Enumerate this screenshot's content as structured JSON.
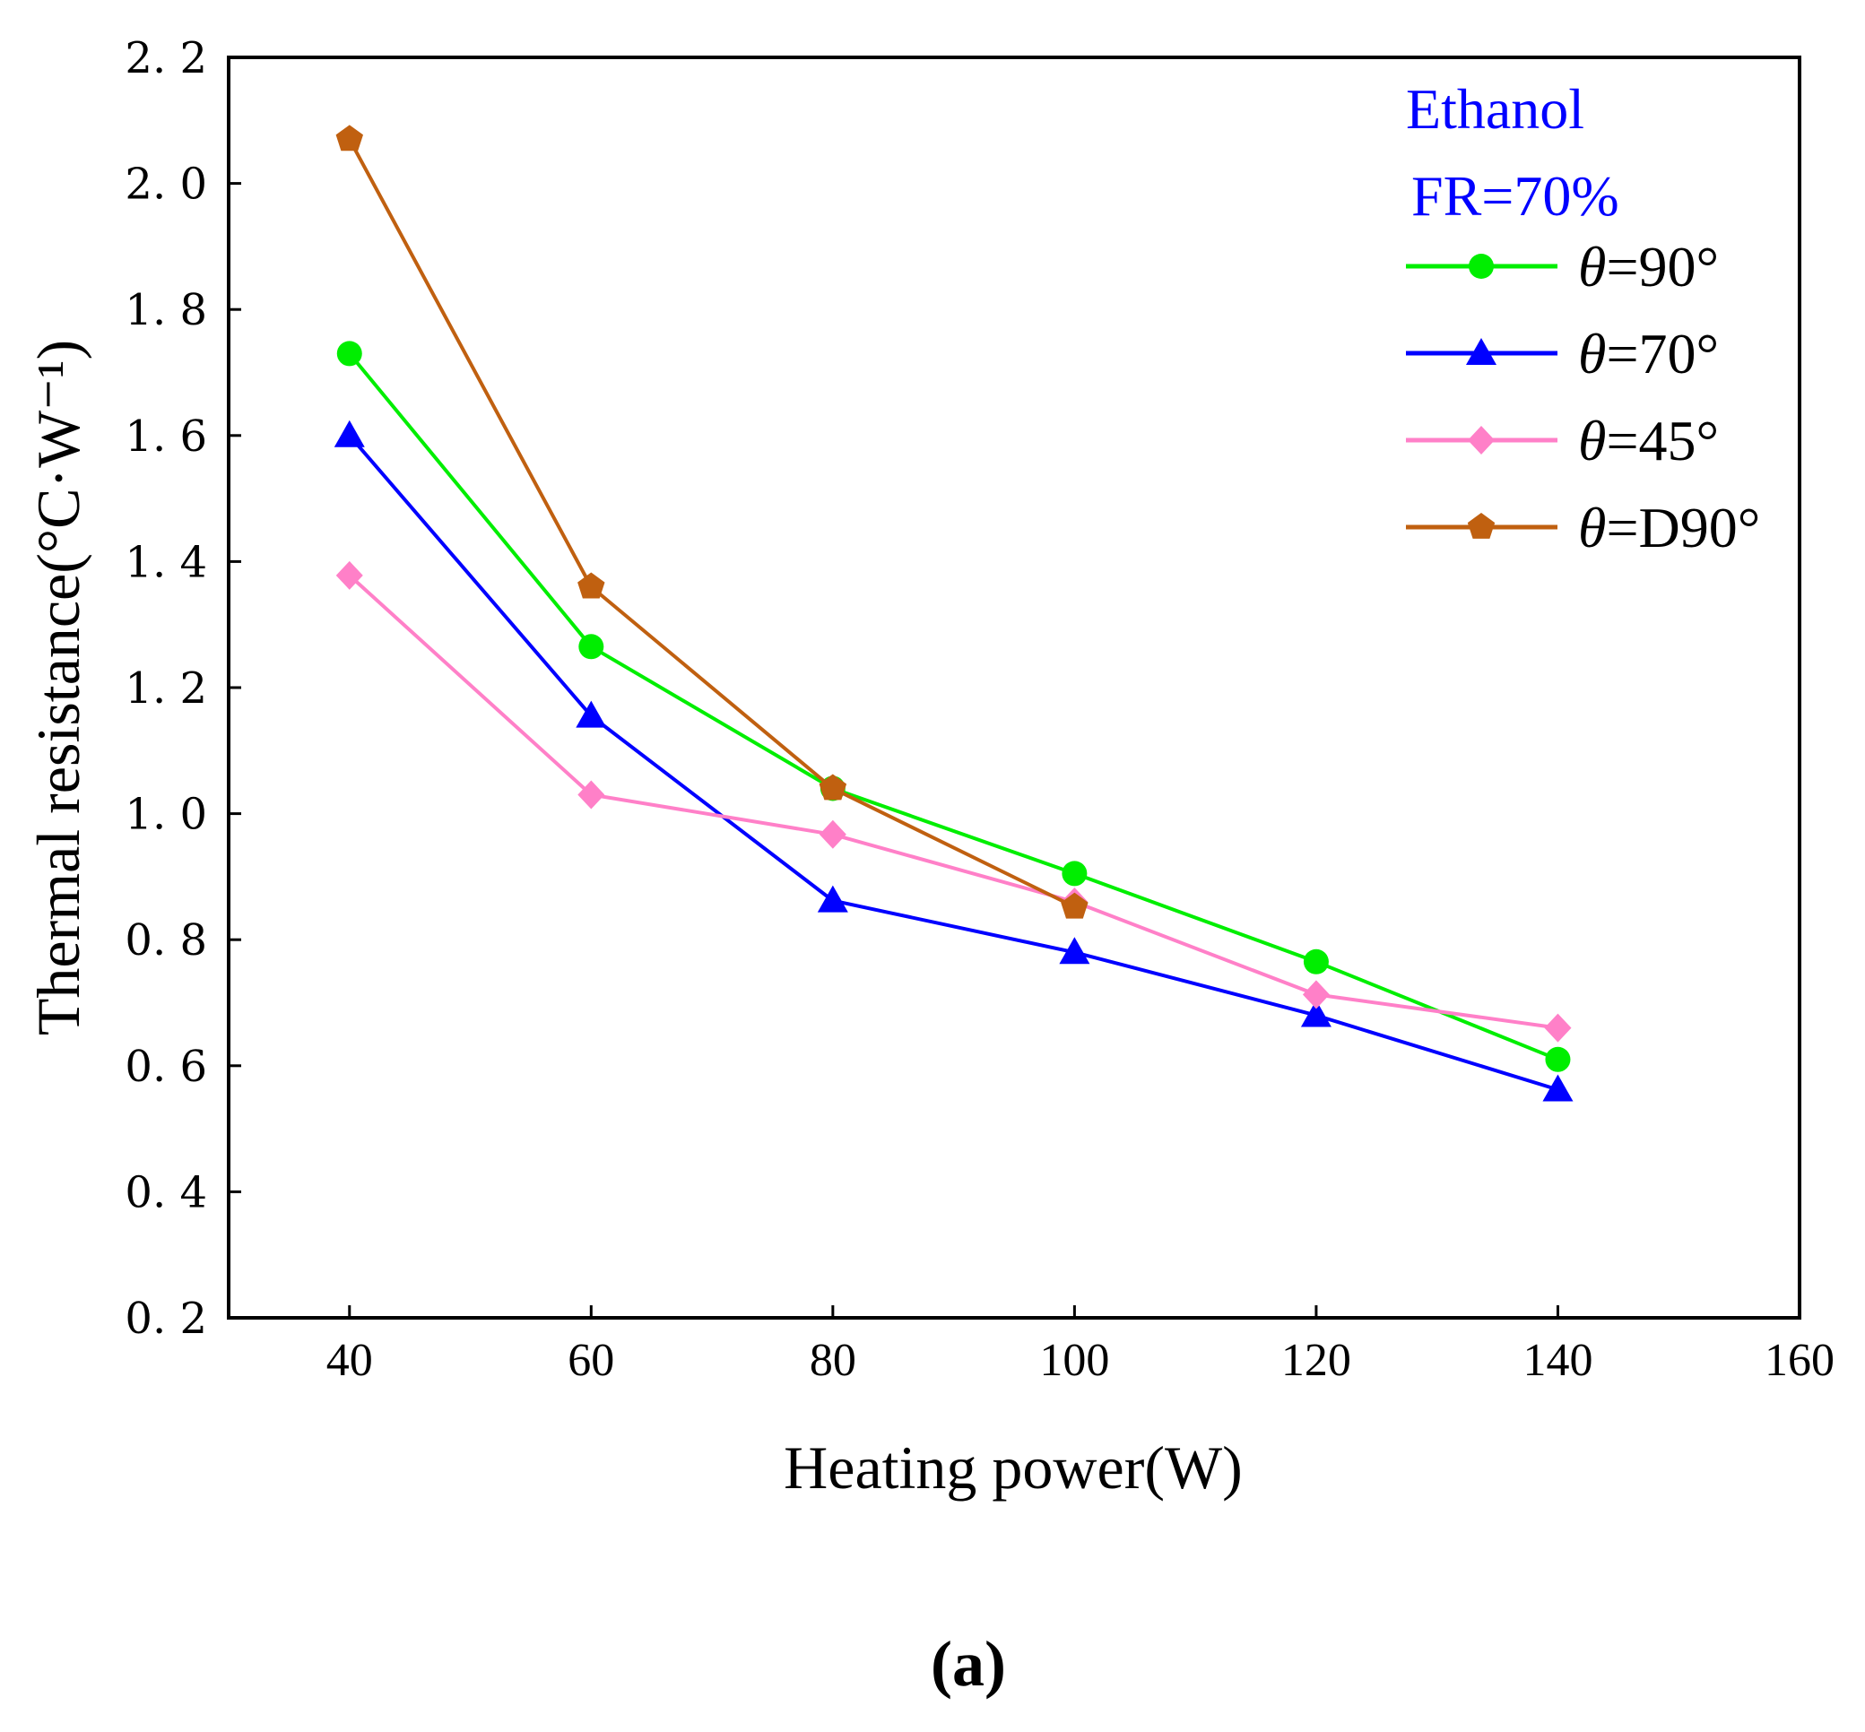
{
  "chart_data": {
    "type": "line",
    "title": "",
    "xlabel": "Heating power(W)",
    "ylabel": "Thermal resistance(°C·W⁻¹)",
    "xlim": [
      30,
      160
    ],
    "ylim": [
      0.2,
      2.2
    ],
    "x_ticks": [
      "40",
      "60",
      "80",
      "100",
      "120",
      "140",
      "160"
    ],
    "x_tick_values": [
      40,
      60,
      80,
      100,
      120,
      140,
      160
    ],
    "y_ticks": [
      "0. 2",
      "0. 4",
      "0. 6",
      "0. 8",
      "1. 0",
      "1. 2",
      "1. 4",
      "1. 6",
      "1. 8",
      "2. 0",
      "2. 2"
    ],
    "y_tick_values": [
      0.2,
      0.4,
      0.6,
      0.8,
      1.0,
      1.2,
      1.4,
      1.6,
      1.8,
      2.0,
      2.2
    ],
    "annotations": [
      "Ethanol",
      "FR=70%"
    ],
    "caption": "(a)",
    "legend_position": "top-right",
    "series": [
      {
        "name": "θ=90°",
        "theta": "θ",
        "rest": "=90°",
        "color": "#00ee00",
        "marker": "circle",
        "x": [
          40,
          60,
          80,
          100,
          120,
          140
        ],
        "values": [
          1.73,
          1.265,
          1.04,
          0.905,
          0.765,
          0.61
        ]
      },
      {
        "name": "θ=70°",
        "theta": "θ",
        "rest": "=70°",
        "color": "#0000ff",
        "marker": "triangle",
        "x": [
          40,
          60,
          80,
          100,
          120,
          140
        ],
        "values": [
          1.6,
          1.155,
          0.862,
          0.78,
          0.68,
          0.562
        ]
      },
      {
        "name": "θ=45°",
        "theta": "θ",
        "rest": "=45°",
        "color": "#ff80c8",
        "marker": "diamond",
        "x": [
          40,
          60,
          80,
          100,
          120,
          140
        ],
        "values": [
          1.378,
          1.03,
          0.967,
          0.86,
          0.713,
          0.66
        ]
      },
      {
        "name": "θ=D90°",
        "theta": "θ",
        "rest": "=D90°",
        "color": "#c06010",
        "marker": "pentagon",
        "x": [
          40,
          60,
          80,
          100
        ],
        "values": [
          2.07,
          1.36,
          1.04,
          0.852
        ]
      }
    ]
  }
}
